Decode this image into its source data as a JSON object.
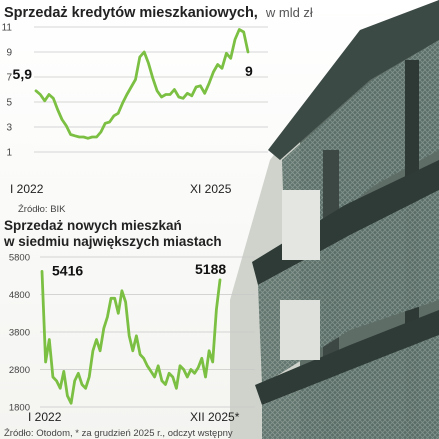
{
  "chart_data": [
    {
      "type": "line",
      "title": "Sprzedaż kredytów mieszkaniowych,",
      "subtitle": "w mld zł",
      "source": "Źródło: BIK",
      "y_ticks": [
        11,
        9,
        7,
        5,
        3,
        1
      ],
      "ylim": [
        1,
        11
      ],
      "x_labels": [
        "I 2022",
        "XI 2025"
      ],
      "grid": true,
      "color": "#7cc043",
      "series": [
        {
          "values": [
            5.9,
            5.6,
            5.1,
            5.6,
            5.3,
            4.4,
            3.6,
            3.1,
            2.4,
            2.3,
            2.2,
            2.2,
            2.1,
            2.2,
            2.2,
            2.6,
            3.3,
            3.4,
            3.9,
            4.1,
            4.9,
            5.6,
            6.2,
            6.8,
            8.6,
            9.0,
            8.1,
            6.9,
            5.9,
            5.4,
            5.6,
            5.6,
            6.0,
            5.4,
            5.3,
            5.7,
            5.5,
            6.2,
            6.3,
            5.7,
            6.5,
            7.4,
            8.0,
            7.7,
            8.9,
            8.5,
            10.0,
            10.8,
            10.6,
            9.0
          ]
        }
      ],
      "data_labels": [
        {
          "index": 0,
          "text": "5,9"
        },
        {
          "index": 49,
          "text": "9"
        }
      ]
    },
    {
      "type": "line",
      "title_lines": [
        "Sprzedaż nowych mieszkań",
        "w siedmiu największych miastach"
      ],
      "source": "Źródło: Otodom, * za grudzień 2025 r., odczyt wstępny",
      "y_ticks": [
        5800,
        4800,
        3800,
        2800,
        1800
      ],
      "ylim": [
        1800,
        5800
      ],
      "x_labels": [
        "I 2022",
        "XII 2025*"
      ],
      "grid": true,
      "color": "#7cc043",
      "series": [
        {
          "values": [
            5416,
            3000,
            3600,
            2600,
            2500,
            2300,
            2750,
            2100,
            1900,
            2500,
            2700,
            2400,
            2300,
            2600,
            3300,
            3600,
            3300,
            3900,
            4200,
            4700,
            4700,
            4300,
            4900,
            4600,
            3700,
            3300,
            3700,
            3200,
            3100,
            2900,
            2750,
            2600,
            2900,
            2500,
            2400,
            2700,
            2600,
            2300,
            2900,
            2800,
            2600,
            2800,
            2700,
            2850,
            3100,
            2600,
            3300,
            3000,
            4400,
            5188
          ]
        }
      ],
      "data_labels": [
        {
          "index": 0,
          "text": "5416"
        },
        {
          "index": 49,
          "text": "5188"
        }
      ]
    }
  ]
}
